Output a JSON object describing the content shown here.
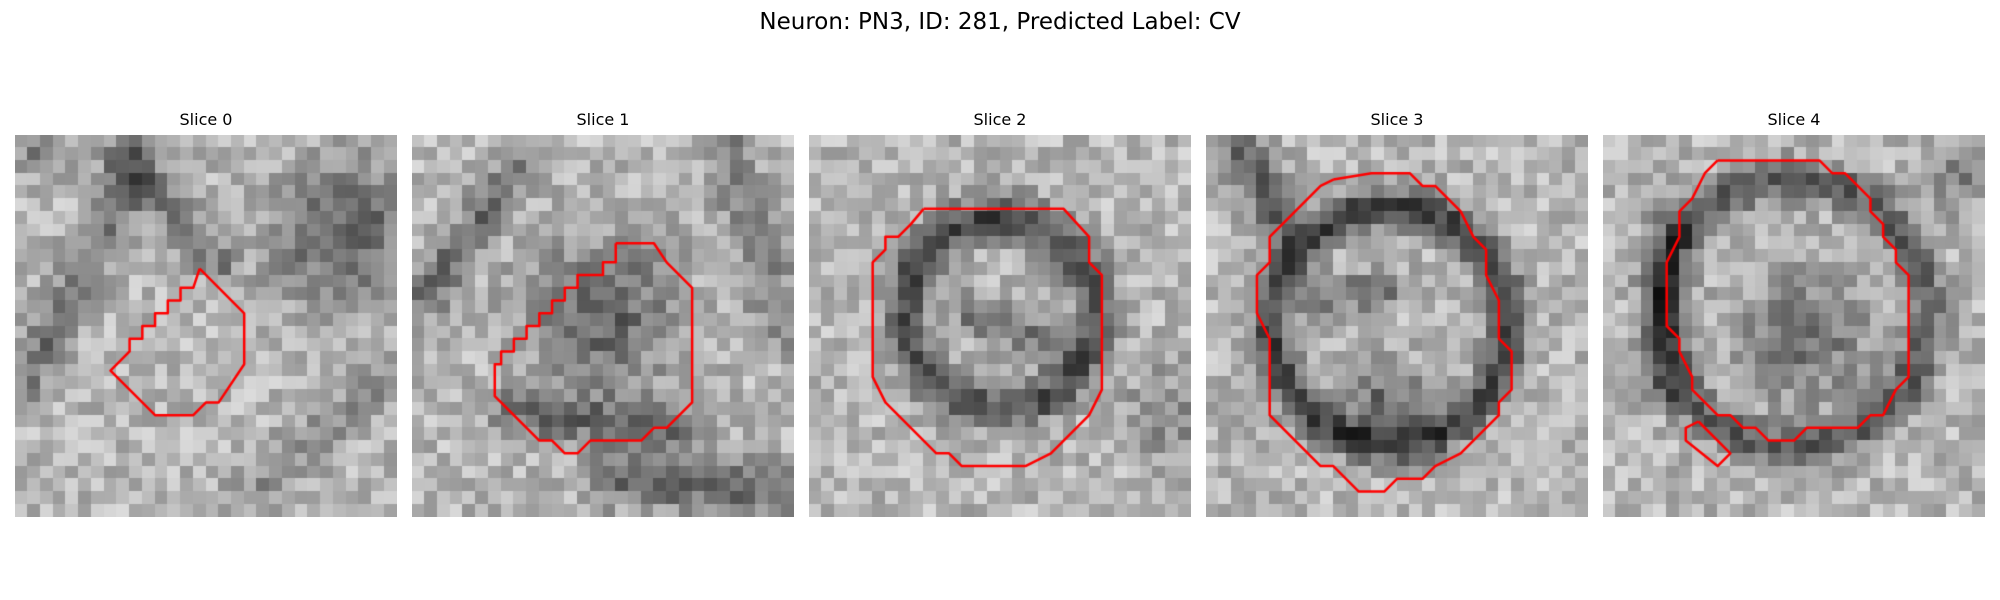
{
  "figure": {
    "suptitle": "Neuron: PN3, ID: 281, Predicted Label: CV",
    "contour_color": "#ff0000"
  },
  "panels": [
    {
      "title": "Slice 0"
    },
    {
      "title": "Slice 1"
    },
    {
      "title": "Slice 2"
    },
    {
      "title": "Slice 3"
    },
    {
      "title": "Slice 4"
    }
  ]
}
